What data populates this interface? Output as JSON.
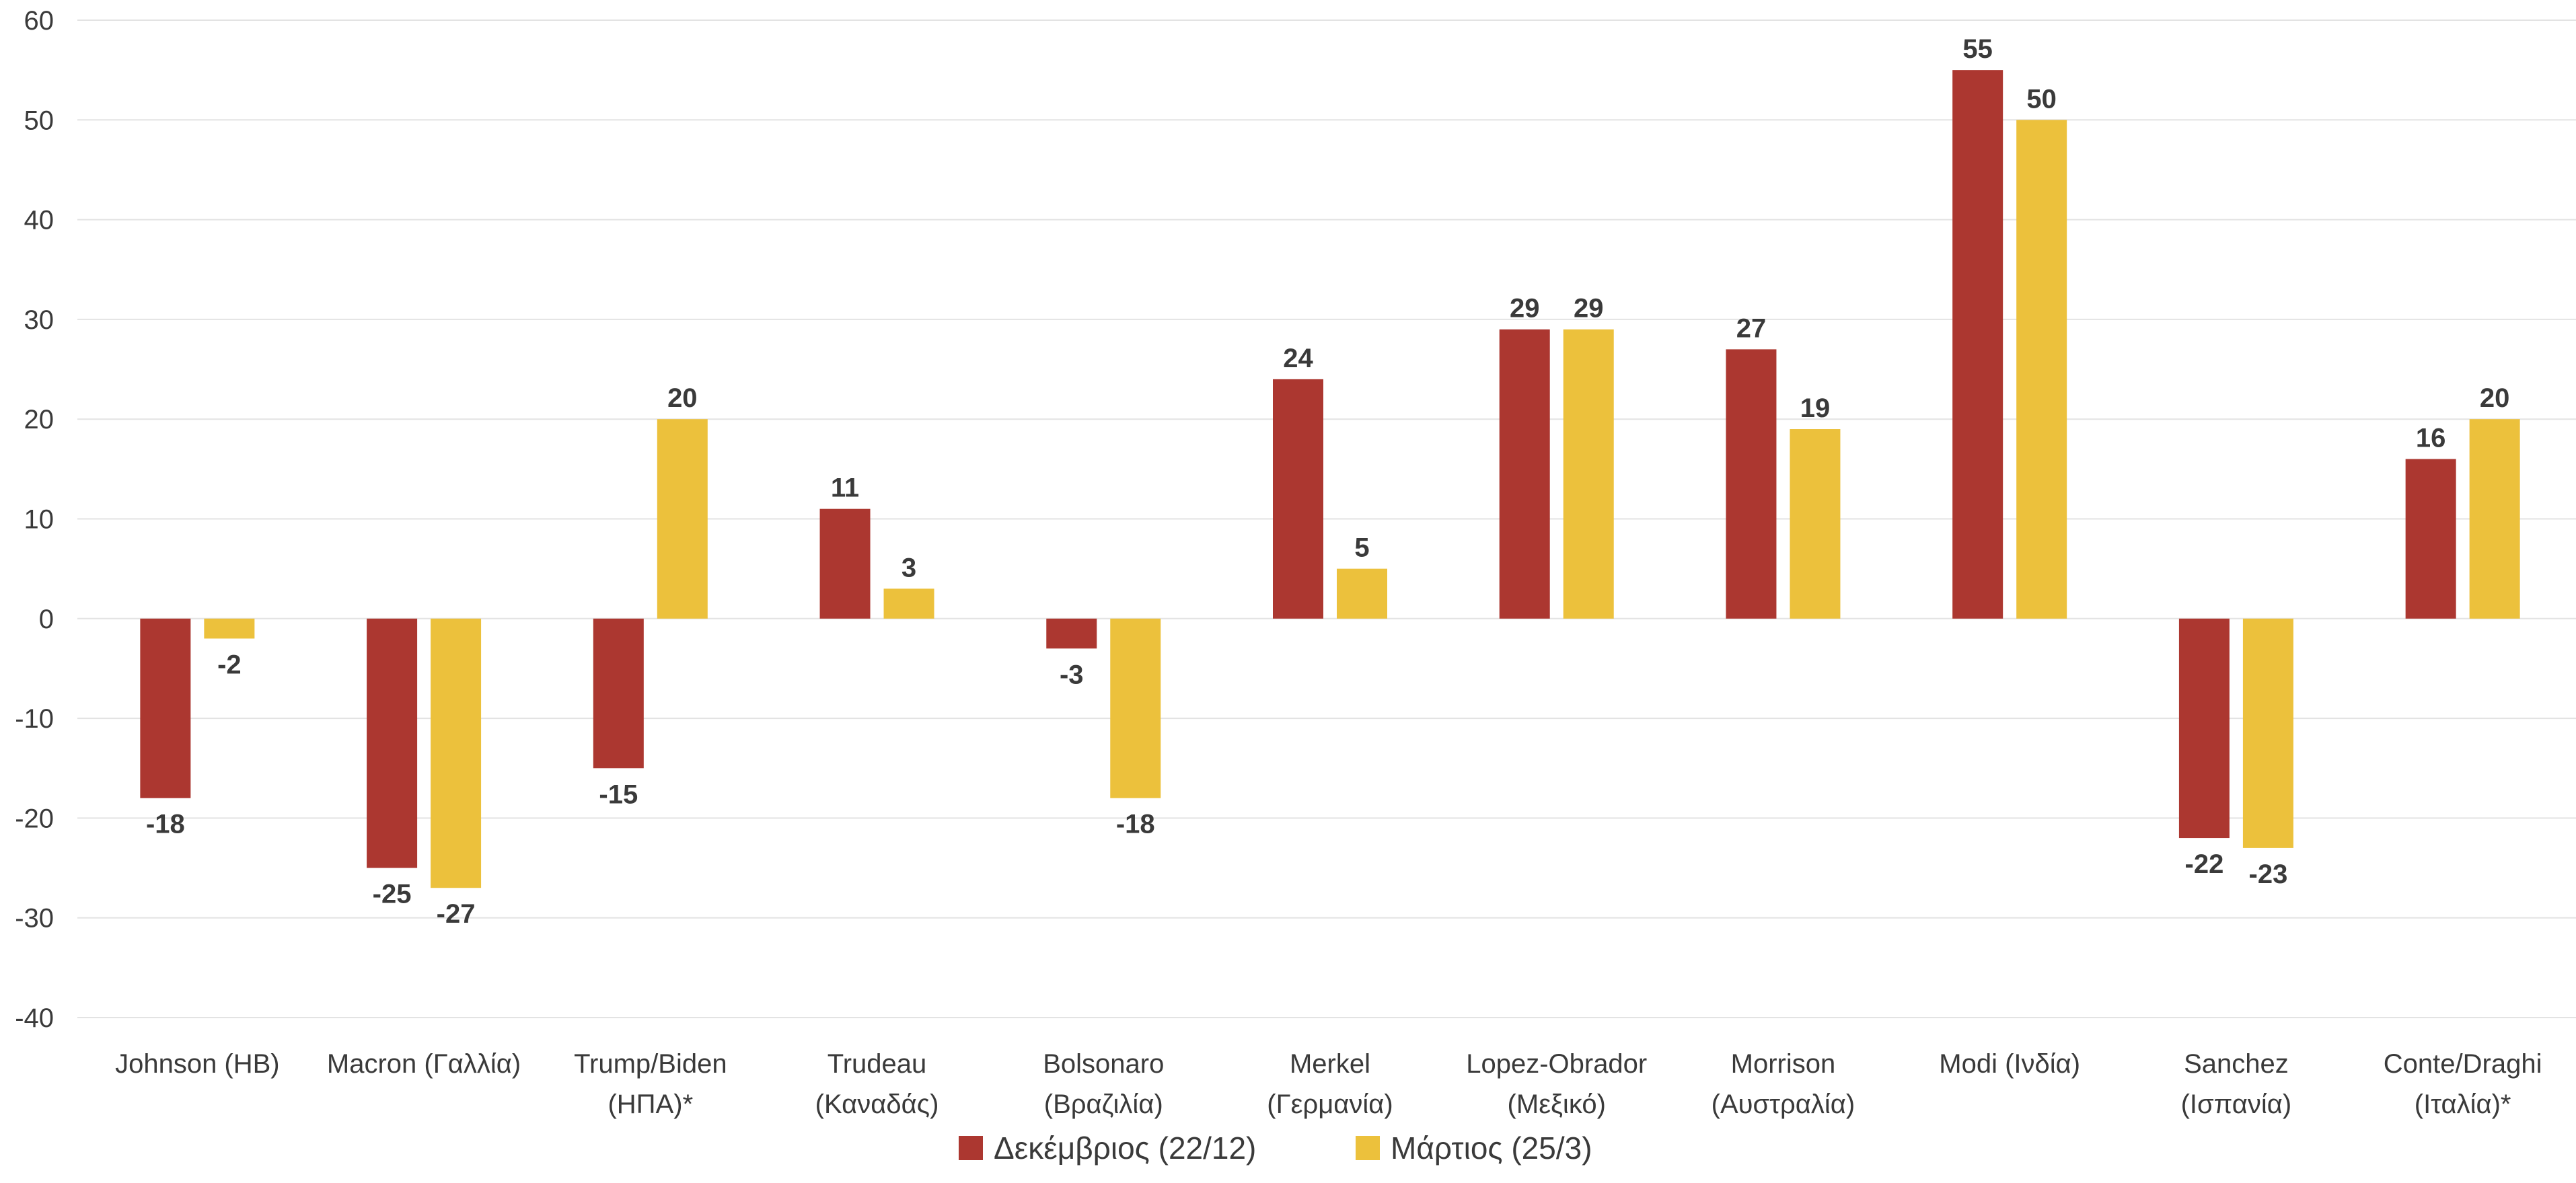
{
  "chart_data": {
    "type": "bar",
    "title": "",
    "xlabel": "",
    "ylabel": "",
    "ylim": [
      -40,
      60
    ],
    "yticks": [
      60,
      50,
      40,
      30,
      20,
      10,
      0,
      -10,
      -20,
      -30,
      -40
    ],
    "grid": true,
    "legend_position": "bottom",
    "categories": [
      [
        "Johnson (ΗΒ)"
      ],
      [
        "Macron (Γαλλία)"
      ],
      [
        "Trump/Biden",
        "(ΗΠΑ)*"
      ],
      [
        "Trudeau",
        "(Καναδάς)"
      ],
      [
        "Bolsonaro",
        "(Βραζιλία)"
      ],
      [
        "Merkel",
        "(Γερμανία)"
      ],
      [
        "Lopez-Obrador",
        "(Μεξικό)"
      ],
      [
        "Morrison",
        "(Αυστραλία)"
      ],
      [
        "Modi (Ινδία)"
      ],
      [
        "Sanchez",
        "(Ισπανία)"
      ],
      [
        "Conte/Draghi",
        "(Ιταλία)*"
      ]
    ],
    "series": [
      {
        "name": "Δεκέμβριος (22/12)",
        "color": "#ac3730",
        "values": [
          -18,
          -25,
          -15,
          11,
          -3,
          24,
          29,
          27,
          55,
          -22,
          16
        ]
      },
      {
        "name": "Μάρτιος (25/3)",
        "color": "#ecc13c",
        "values": [
          -2,
          -27,
          20,
          3,
          -18,
          5,
          29,
          19,
          50,
          -23,
          20
        ]
      }
    ]
  }
}
